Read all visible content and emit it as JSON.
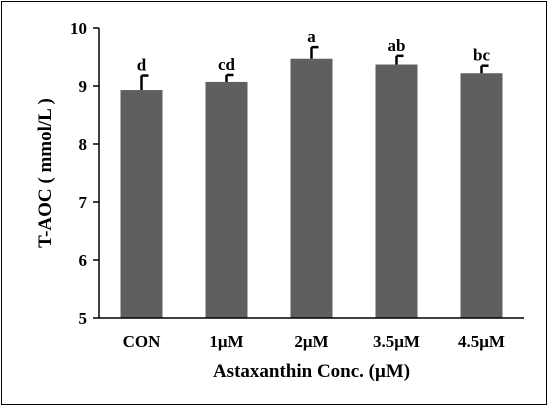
{
  "chart_data": {
    "type": "bar",
    "xlabel": "Astaxanthin  Conc. (μM)",
    "ylabel": "T-AOC ( mmol/L )",
    "ylim": [
      5,
      10
    ],
    "yticks": [
      5,
      6,
      7,
      8,
      9,
      10
    ],
    "categories": [
      "CON",
      "1μM",
      "2μM",
      "3.5μM",
      "4.5μM"
    ],
    "values": [
      8.93,
      9.07,
      9.47,
      9.37,
      9.22
    ],
    "errors": [
      0.25,
      0.12,
      0.2,
      0.15,
      0.13
    ],
    "significance": [
      "d",
      "cd",
      "a",
      "ab",
      "bc"
    ],
    "bar_color": "#5f5f5f",
    "grid": false,
    "legend": "none"
  }
}
